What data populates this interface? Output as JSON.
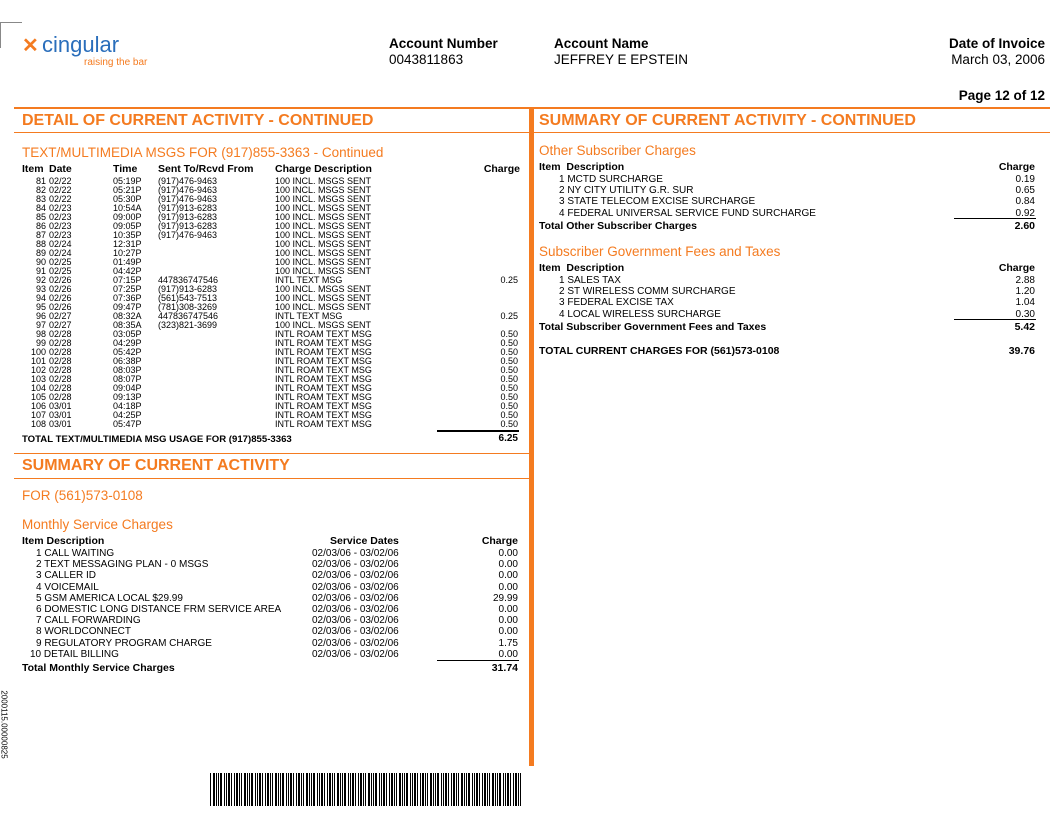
{
  "header": {
    "logo_name": "cingular",
    "logo_tagline": "raising the bar",
    "account_number_label": "Account Number",
    "account_number": "0043811863",
    "account_name_label": "Account Name",
    "account_name": "JEFFREY E EPSTEIN",
    "invoice_date_label": "Date of Invoice",
    "invoice_date": "March 03, 2006",
    "page": "Page 12 of 12"
  },
  "colors": {
    "accent": "#f47b20",
    "logo_blue": "#2a6ebb"
  },
  "detail": {
    "title": "DETAIL OF CURRENT ACTIVITY - CONTINUED",
    "subtitle": "TEXT/MULTIMEDIA MSGS FOR (917)855-3363 - Continued",
    "columns": [
      "Item",
      "Date",
      "Time",
      "Sent To/Rcvd From",
      "Charge Description",
      "Charge"
    ],
    "rows": [
      [
        "81",
        "02/22",
        "05:19P",
        "(917)476-9463",
        "100 INCL. MSGS SENT",
        ""
      ],
      [
        "82",
        "02/22",
        "05:21P",
        "(917)476-9463",
        "100 INCL. MSGS SENT",
        ""
      ],
      [
        "83",
        "02/22",
        "05:30P",
        "(917)476-9463",
        "100 INCL. MSGS SENT",
        ""
      ],
      [
        "84",
        "02/23",
        "10:54A",
        "(917)913-6283",
        "100 INCL. MSGS SENT",
        ""
      ],
      [
        "85",
        "02/23",
        "09:00P",
        "(917)913-6283",
        "100 INCL. MSGS SENT",
        ""
      ],
      [
        "86",
        "02/23",
        "09:05P",
        "(917)913-6283",
        "100 INCL. MSGS SENT",
        ""
      ],
      [
        "87",
        "02/23",
        "10:35P",
        "(917)476-9463",
        "100 INCL. MSGS SENT",
        ""
      ],
      [
        "88",
        "02/24",
        "12:31P",
        "",
        "100 INCL. MSGS SENT",
        ""
      ],
      [
        "89",
        "02/24",
        "10:27P",
        "",
        "100 INCL. MSGS SENT",
        ""
      ],
      [
        "90",
        "02/25",
        "01:49P",
        "",
        "100 INCL. MSGS SENT",
        ""
      ],
      [
        "91",
        "02/25",
        "04:42P",
        "",
        "100 INCL. MSGS SENT",
        ""
      ],
      [
        "92",
        "02/26",
        "07:15P",
        "447836747546",
        "INTL TEXT MSG",
        "0.25"
      ],
      [
        "93",
        "02/26",
        "07:25P",
        "(917)913-6283",
        "100 INCL. MSGS SENT",
        ""
      ],
      [
        "94",
        "02/26",
        "07:36P",
        "(561)543-7513",
        "100 INCL. MSGS SENT",
        ""
      ],
      [
        "95",
        "02/26",
        "09:47P",
        "(781)308-3269",
        "100 INCL. MSGS SENT",
        ""
      ],
      [
        "96",
        "02/27",
        "08:32A",
        "447836747546",
        "INTL TEXT MSG",
        "0.25"
      ],
      [
        "97",
        "02/27",
        "08:35A",
        "(323)821-3699",
        "100 INCL. MSGS SENT",
        ""
      ],
      [
        "98",
        "02/28",
        "03:05P",
        "",
        "INTL ROAM TEXT MSG",
        "0.50"
      ],
      [
        "99",
        "02/28",
        "04:29P",
        "",
        "INTL ROAM TEXT MSG",
        "0.50"
      ],
      [
        "100",
        "02/28",
        "05:42P",
        "",
        "INTL ROAM TEXT MSG",
        "0.50"
      ],
      [
        "101",
        "02/28",
        "06:38P",
        "",
        "INTL ROAM TEXT MSG",
        "0.50"
      ],
      [
        "102",
        "02/28",
        "08:03P",
        "",
        "INTL ROAM TEXT MSG",
        "0.50"
      ],
      [
        "103",
        "02/28",
        "08:07P",
        "",
        "INTL ROAM TEXT MSG",
        "0.50"
      ],
      [
        "104",
        "02/28",
        "09:04P",
        "",
        "INTL ROAM TEXT MSG",
        "0.50"
      ],
      [
        "105",
        "02/28",
        "09:13P",
        "",
        "INTL ROAM TEXT MSG",
        "0.50"
      ],
      [
        "106",
        "03/01",
        "04:18P",
        "",
        "INTL ROAM TEXT MSG",
        "0.50"
      ],
      [
        "107",
        "03/01",
        "04:25P",
        "",
        "INTL ROAM TEXT MSG",
        "0.50"
      ],
      [
        "108",
        "03/01",
        "05:47P",
        "",
        "INTL ROAM TEXT MSG",
        "0.50"
      ]
    ],
    "total_label": "TOTAL TEXT/MULTIMEDIA MSG USAGE FOR (917)855-3363",
    "total": "6.25"
  },
  "summary": {
    "title": "SUMMARY OF CURRENT ACTIVITY",
    "for": "FOR (561)573-0108",
    "monthly_title": "Monthly Service Charges",
    "columns": [
      "Item Description",
      "Service Dates",
      "Charge"
    ],
    "rows": [
      [
        "1 CALL WAITING",
        "02/03/06 - 03/02/06",
        "0.00"
      ],
      [
        "2 TEXT MESSAGING PLAN - 0 MSGS",
        "02/03/06 - 03/02/06",
        "0.00"
      ],
      [
        "3 CALLER ID",
        "02/03/06 - 03/02/06",
        "0.00"
      ],
      [
        "4 VOICEMAIL",
        "02/03/06 - 03/02/06",
        "0.00"
      ],
      [
        "5 GSM AMERICA LOCAL $29.99",
        "02/03/06 - 03/02/06",
        "29.99"
      ],
      [
        "6 DOMESTIC LONG DISTANCE FRM SERVICE AREA",
        "02/03/06 - 03/02/06",
        "0.00"
      ],
      [
        "7 CALL FORWARDING",
        "02/03/06 - 03/02/06",
        "0.00"
      ],
      [
        "8 WORLDCONNECT",
        "02/03/06 - 03/02/06",
        "0.00"
      ],
      [
        "9 REGULATORY PROGRAM CHARGE",
        "02/03/06 - 03/02/06",
        "1.75"
      ],
      [
        "10 DETAIL BILLING",
        "02/03/06 - 03/02/06",
        "0.00"
      ]
    ],
    "total_label": "Total Monthly Service Charges",
    "total": "31.74"
  },
  "summary_cont": {
    "title": "SUMMARY OF CURRENT ACTIVITY - CONTINUED",
    "other": {
      "title": "Other Subscriber Charges",
      "columns": [
        "Item  Description",
        "Charge"
      ],
      "rows": [
        [
          "1 MCTD SURCHARGE",
          "0.19"
        ],
        [
          "2 NY CITY UTILITY G.R. SUR",
          "0.65"
        ],
        [
          "3 STATE TELECOM EXCISE SURCHARGE",
          "0.84"
        ],
        [
          "4 FEDERAL UNIVERSAL SERVICE FUND SURCHARGE",
          "0.92"
        ]
      ],
      "total_label": "Total Other Subscriber Charges",
      "total": "2.60"
    },
    "gov": {
      "title": "Subscriber Government Fees and Taxes",
      "columns": [
        "Item  Description",
        "Charge"
      ],
      "rows": [
        [
          "1 SALES TAX",
          "2.88"
        ],
        [
          "2 ST WIRELESS COMM SURCHARGE",
          "1.20"
        ],
        [
          "3 FEDERAL EXCISE TAX",
          "1.04"
        ],
        [
          "4 LOCAL WIRELESS SURCHARGE",
          "0.30"
        ]
      ],
      "total_label": "Total Subscriber Government Fees and Taxes",
      "total": "5.42"
    },
    "grand_label": "TOTAL CURRENT CHARGES FOR (561)573-0108",
    "grand_total": "39.76"
  },
  "footer": {
    "side_code": "2000115.00000825"
  }
}
